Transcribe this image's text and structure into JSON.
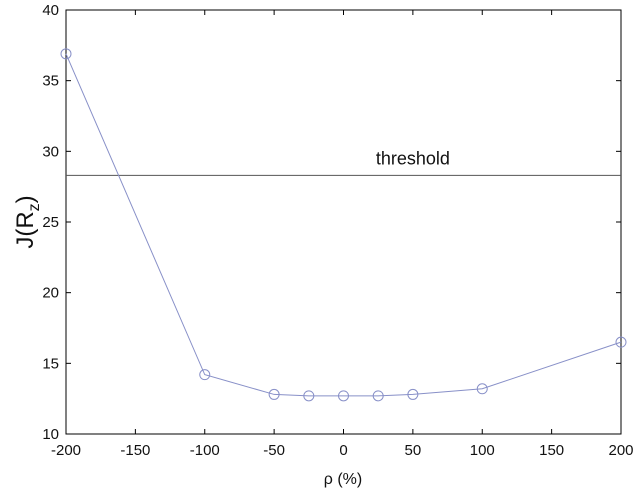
{
  "chart_data": {
    "type": "line",
    "title": "",
    "xlabel": "ρ (%)",
    "ylabel": {
      "main": "J(R",
      "subscript": "z",
      "suffix": ")"
    },
    "xlim": [
      -200,
      200
    ],
    "ylim": [
      10,
      40
    ],
    "xticks": [
      -200,
      -150,
      -100,
      -50,
      0,
      50,
      100,
      150,
      200
    ],
    "yticks": [
      10,
      15,
      20,
      25,
      30,
      35,
      40
    ],
    "grid": false,
    "series": [
      {
        "x": [
          -200,
          -100,
          -50,
          -25,
          0,
          25,
          50,
          100,
          200
        ],
        "y": [
          36.9,
          14.2,
          12.8,
          12.7,
          12.7,
          12.7,
          12.8,
          13.2,
          16.5
        ],
        "marker": "circle",
        "color": "#8890c8"
      }
    ],
    "reference_lines": [
      {
        "orientation": "horizontal",
        "y": 28.3,
        "label": "threshold",
        "color": "#555555"
      }
    ]
  }
}
